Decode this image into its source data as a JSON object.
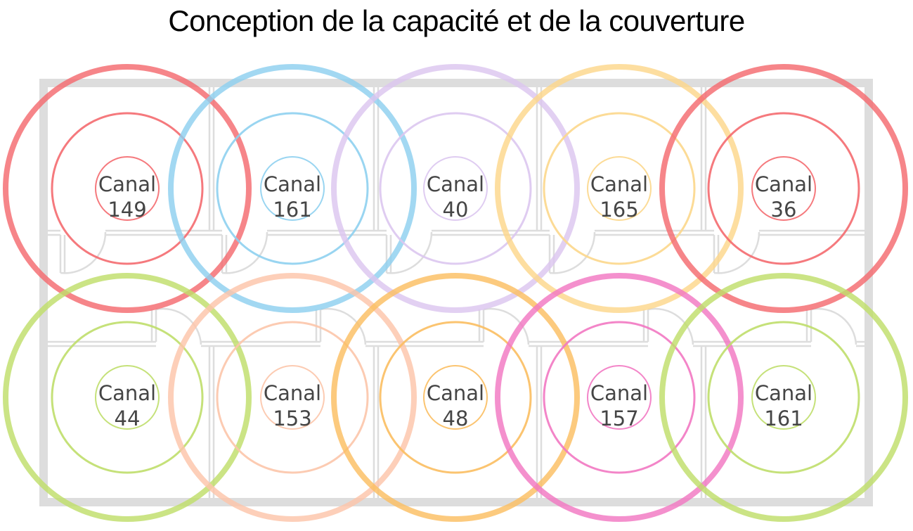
{
  "title": "Conception de la capacité et de la couverture",
  "access_points": [
    {
      "label": "Canal",
      "channel": "149",
      "color": "#f46a6f"
    },
    {
      "label": "Canal",
      "channel": "161",
      "color": "#8ed0ef"
    },
    {
      "label": "Canal",
      "channel": "40",
      "color": "#dcc6ef"
    },
    {
      "label": "Canal",
      "channel": "165",
      "color": "#fcd78b"
    },
    {
      "label": "Canal",
      "channel": "36",
      "color": "#f46a6f"
    },
    {
      "label": "Canal",
      "channel": "44",
      "color": "#bfde6a"
    },
    {
      "label": "Canal",
      "channel": "153",
      "color": "#fcc5aa"
    },
    {
      "label": "Canal",
      "channel": "48",
      "color": "#fbbe61"
    },
    {
      "label": "Canal",
      "channel": "157",
      "color": "#f278c2"
    },
    {
      "label": "Canal",
      "channel": "161",
      "color": "#bfde6a"
    }
  ]
}
